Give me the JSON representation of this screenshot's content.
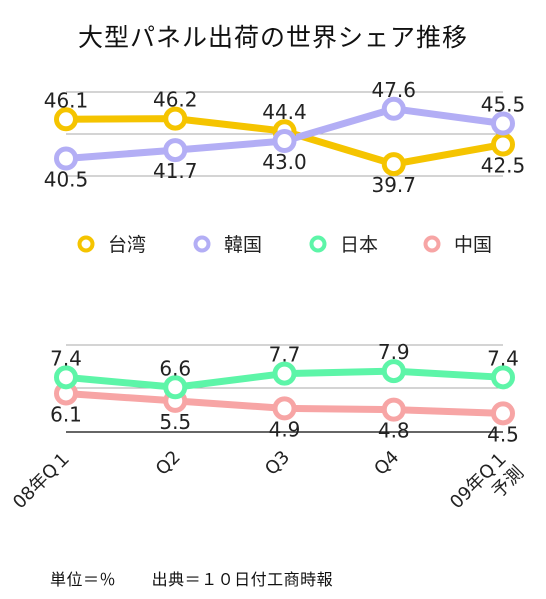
{
  "chart_data": {
    "type": "line",
    "title": "大型パネル出荷の世界シェア推移",
    "categories": [
      "08年Q１",
      "Q2",
      "Q3",
      "Q4",
      "09年Q１\n予測"
    ],
    "series": [
      {
        "name": "台湾",
        "color": "#f5c400",
        "values": [
          46.1,
          46.2,
          44.4,
          39.7,
          42.5
        ],
        "label_pos": [
          "above",
          "above",
          "above",
          "below",
          "below"
        ]
      },
      {
        "name": "韓国",
        "color": "#b3aef5",
        "values": [
          40.5,
          41.7,
          43.0,
          47.6,
          45.5
        ],
        "label_pos": [
          "below",
          "below",
          "below",
          "above",
          "above"
        ]
      },
      {
        "name": "日本",
        "color": "#5df5a8",
        "values": [
          7.4,
          6.6,
          7.7,
          7.9,
          7.4
        ],
        "label_pos": [
          "above",
          "above",
          "above",
          "above",
          "above"
        ]
      },
      {
        "name": "中国",
        "color": "#f7a5a5",
        "values": [
          6.1,
          5.5,
          4.9,
          4.8,
          4.5
        ],
        "label_pos": [
          "below",
          "below",
          "below",
          "below",
          "below"
        ]
      }
    ],
    "legend_position": "middle",
    "grid": true,
    "footer_unit": "単位＝％",
    "footer_source": "出典＝１０日付工商時報"
  }
}
